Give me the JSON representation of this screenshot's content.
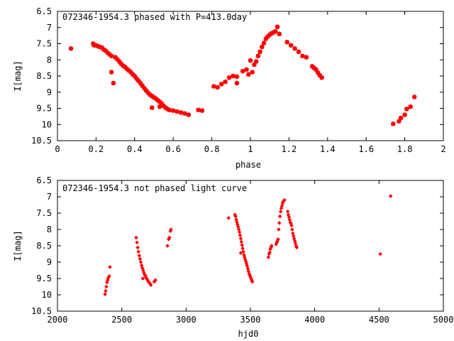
{
  "chart_data": [
    {
      "type": "scatter",
      "title": "072346-1954.3 phased with P=413.0day",
      "xlabel": "phase",
      "ylabel": "I[mag]",
      "xlim": [
        0,
        2
      ],
      "ylim": [
        10.5,
        6.5
      ],
      "y_inverted": true,
      "xticks": [
        0,
        0.2,
        0.4,
        0.6,
        0.8,
        1,
        1.2,
        1.4,
        1.6,
        1.8,
        2
      ],
      "xtick_labels": [
        "0",
        "0.2",
        "0.4",
        "0.6",
        "0.8",
        "1",
        "1.2",
        "1.4",
        "1.6",
        "1.8",
        "2"
      ],
      "yticks": [
        6.5,
        7,
        7.5,
        8,
        8.5,
        9,
        9.5,
        10,
        10.5
      ],
      "ytick_labels": [
        "6.5",
        "7",
        "7.5",
        "8",
        "8.5",
        "9",
        "9.5",
        "10",
        "10.5"
      ],
      "marker": "star",
      "color": "#ff0000",
      "points": [
        [
          0.07,
          7.65
        ],
        [
          0.185,
          7.5
        ],
        [
          0.19,
          7.55
        ],
        [
          0.2,
          7.55
        ],
        [
          0.21,
          7.58
        ],
        [
          0.22,
          7.6
        ],
        [
          0.23,
          7.62
        ],
        [
          0.24,
          7.68
        ],
        [
          0.25,
          7.72
        ],
        [
          0.26,
          7.78
        ],
        [
          0.27,
          7.83
        ],
        [
          0.28,
          7.88
        ],
        [
          0.28,
          8.38
        ],
        [
          0.29,
          8.72
        ],
        [
          0.3,
          7.92
        ],
        [
          0.31,
          7.98
        ],
        [
          0.32,
          8.05
        ],
        [
          0.33,
          8.12
        ],
        [
          0.34,
          8.18
        ],
        [
          0.35,
          8.22
        ],
        [
          0.36,
          8.28
        ],
        [
          0.37,
          8.33
        ],
        [
          0.38,
          8.38
        ],
        [
          0.39,
          8.45
        ],
        [
          0.4,
          8.5
        ],
        [
          0.41,
          8.58
        ],
        [
          0.42,
          8.65
        ],
        [
          0.43,
          8.72
        ],
        [
          0.44,
          8.8
        ],
        [
          0.45,
          8.88
        ],
        [
          0.46,
          8.95
        ],
        [
          0.47,
          9.02
        ],
        [
          0.48,
          9.08
        ],
        [
          0.49,
          9.12
        ],
        [
          0.49,
          9.48
        ],
        [
          0.5,
          9.16
        ],
        [
          0.51,
          9.2
        ],
        [
          0.52,
          9.25
        ],
        [
          0.53,
          9.3
        ],
        [
          0.53,
          9.45
        ],
        [
          0.54,
          9.35
        ],
        [
          0.55,
          9.42
        ],
        [
          0.56,
          9.48
        ],
        [
          0.57,
          9.52
        ],
        [
          0.58,
          9.55
        ],
        [
          0.6,
          9.57
        ],
        [
          0.62,
          9.6
        ],
        [
          0.64,
          9.63
        ],
        [
          0.66,
          9.66
        ],
        [
          0.68,
          9.7
        ],
        [
          0.73,
          9.55
        ],
        [
          0.75,
          9.57
        ],
        [
          0.81,
          8.82
        ],
        [
          0.83,
          8.85
        ],
        [
          0.85,
          8.75
        ],
        [
          0.87,
          8.68
        ],
        [
          0.89,
          8.55
        ],
        [
          0.91,
          8.5
        ],
        [
          0.93,
          8.52
        ],
        [
          0.93,
          8.72
        ],
        [
          0.96,
          8.35
        ],
        [
          0.98,
          8.3
        ],
        [
          0.99,
          8.45
        ],
        [
          1.0,
          8.02
        ],
        [
          1.01,
          8.38
        ],
        [
          1.02,
          8.15
        ],
        [
          1.03,
          8.05
        ],
        [
          1.04,
          7.88
        ],
        [
          1.05,
          7.75
        ],
        [
          1.06,
          7.6
        ],
        [
          1.07,
          7.48
        ],
        [
          1.08,
          7.35
        ],
        [
          1.09,
          7.28
        ],
        [
          1.1,
          7.22
        ],
        [
          1.11,
          7.18
        ],
        [
          1.12,
          7.15
        ],
        [
          1.13,
          7.12
        ],
        [
          1.14,
          6.98
        ],
        [
          1.15,
          7.2
        ],
        [
          1.19,
          7.45
        ],
        [
          1.21,
          7.55
        ],
        [
          1.23,
          7.65
        ],
        [
          1.25,
          7.75
        ],
        [
          1.27,
          7.88
        ],
        [
          1.29,
          7.92
        ],
        [
          1.32,
          8.2
        ],
        [
          1.33,
          8.25
        ],
        [
          1.34,
          8.3
        ],
        [
          1.35,
          8.4
        ],
        [
          1.36,
          8.48
        ],
        [
          1.37,
          8.55
        ],
        [
          1.74,
          9.98
        ],
        [
          1.77,
          9.9
        ],
        [
          1.78,
          9.8
        ],
        [
          1.8,
          9.7
        ],
        [
          1.81,
          9.52
        ],
        [
          1.83,
          9.45
        ],
        [
          1.85,
          9.15
        ]
      ]
    },
    {
      "type": "scatter",
      "title": "072346-1954.3 not phased light curve",
      "xlabel": "hjd0",
      "ylabel": "I[mag]",
      "xlim": [
        2000,
        5000
      ],
      "ylim": [
        10.5,
        6.5
      ],
      "y_inverted": true,
      "xticks": [
        2000,
        2500,
        3000,
        3500,
        4000,
        4500,
        5000
      ],
      "xtick_labels": [
        "2000",
        "2500",
        "3000",
        "3500",
        "4000",
        "4500",
        "5000"
      ],
      "yticks": [
        6.5,
        7,
        7.5,
        8,
        8.5,
        9,
        9.5,
        10,
        10.5
      ],
      "ytick_labels": [
        "6.5",
        "7",
        "7.5",
        "8",
        "8.5",
        "9",
        "9.5",
        "10",
        "10.5"
      ],
      "marker": "diamond",
      "color": "#ff0000",
      "points": [
        [
          2370,
          9.98
        ],
        [
          2375,
          9.88
        ],
        [
          2380,
          9.75
        ],
        [
          2385,
          9.62
        ],
        [
          2390,
          9.55
        ],
        [
          2395,
          9.48
        ],
        [
          2402,
          9.43
        ],
        [
          2408,
          9.15
        ],
        [
          2612,
          8.25
        ],
        [
          2618,
          8.4
        ],
        [
          2624,
          8.55
        ],
        [
          2630,
          8.68
        ],
        [
          2636,
          8.8
        ],
        [
          2642,
          8.9
        ],
        [
          2648,
          9.0
        ],
        [
          2654,
          9.1
        ],
        [
          2660,
          9.18
        ],
        [
          2666,
          9.25
        ],
        [
          2672,
          9.32
        ],
        [
          2678,
          9.38
        ],
        [
          2684,
          9.42
        ],
        [
          2690,
          9.48
        ],
        [
          2696,
          9.52
        ],
        [
          2702,
          9.56
        ],
        [
          2708,
          9.6
        ],
        [
          2714,
          9.63
        ],
        [
          2720,
          9.66
        ],
        [
          2726,
          9.7
        ],
        [
          2664,
          9.5
        ],
        [
          2752,
          9.6
        ],
        [
          2762,
          9.55
        ],
        [
          2855,
          8.5
        ],
        [
          2865,
          8.3
        ],
        [
          2870,
          8.25
        ],
        [
          2878,
          8.05
        ],
        [
          2882,
          8.0
        ],
        [
          3330,
          7.65
        ],
        [
          3380,
          7.55
        ],
        [
          3385,
          7.6
        ],
        [
          3390,
          7.7
        ],
        [
          3395,
          7.78
        ],
        [
          3400,
          7.85
        ],
        [
          3405,
          7.92
        ],
        [
          3410,
          8.0
        ],
        [
          3415,
          8.08
        ],
        [
          3420,
          8.18
        ],
        [
          3425,
          8.28
        ],
        [
          3430,
          8.38
        ],
        [
          3435,
          8.48
        ],
        [
          3440,
          8.58
        ],
        [
          3445,
          8.68
        ],
        [
          3450,
          8.78
        ],
        [
          3455,
          8.85
        ],
        [
          3460,
          8.92
        ],
        [
          3465,
          8.98
        ],
        [
          3470,
          9.05
        ],
        [
          3475,
          9.12
        ],
        [
          3480,
          9.2
        ],
        [
          3485,
          9.28
        ],
        [
          3490,
          9.35
        ],
        [
          3495,
          9.4
        ],
        [
          3500,
          9.45
        ],
        [
          3505,
          9.5
        ],
        [
          3510,
          9.55
        ],
        [
          3515,
          9.6
        ],
        [
          3425,
          8.72
        ],
        [
          3640,
          8.85
        ],
        [
          3645,
          8.75
        ],
        [
          3650,
          8.7
        ],
        [
          3655,
          8.6
        ],
        [
          3660,
          8.55
        ],
        [
          3665,
          8.5
        ],
        [
          3700,
          8.45
        ],
        [
          3705,
          8.4
        ],
        [
          3710,
          8.35
        ],
        [
          3715,
          8.3
        ],
        [
          3720,
          8.0
        ],
        [
          3725,
          7.8
        ],
        [
          3730,
          7.6
        ],
        [
          3735,
          7.45
        ],
        [
          3740,
          7.35
        ],
        [
          3745,
          7.28
        ],
        [
          3750,
          7.2
        ],
        [
          3755,
          7.15
        ],
        [
          3760,
          7.12
        ],
        [
          3765,
          7.1
        ],
        [
          3790,
          7.45
        ],
        [
          3795,
          7.55
        ],
        [
          3800,
          7.62
        ],
        [
          3805,
          7.7
        ],
        [
          3810,
          7.78
        ],
        [
          3815,
          7.82
        ],
        [
          3820,
          7.88
        ],
        [
          3825,
          8.0
        ],
        [
          3830,
          8.12
        ],
        [
          3835,
          8.2
        ],
        [
          3840,
          8.28
        ],
        [
          3845,
          8.35
        ],
        [
          3850,
          8.42
        ],
        [
          3855,
          8.5
        ],
        [
          3860,
          8.55
        ],
        [
          4510,
          8.75
        ],
        [
          4590,
          6.98
        ]
      ]
    }
  ]
}
